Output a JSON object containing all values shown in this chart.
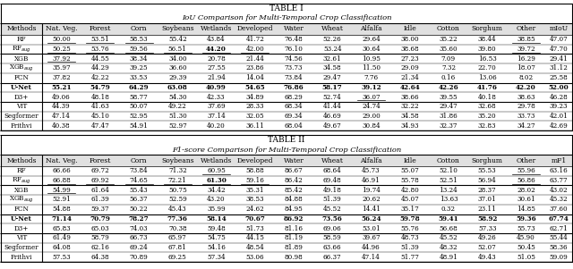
{
  "table1_title": "TABLE I",
  "table1_subtitle": "IoU Comparison for Multi-Temporal Crop Classification",
  "table2_title": "TABLE II",
  "table2_subtitle": "F1-score Comparison for Multi-Temporal Crop Classification",
  "columns": [
    "Methods",
    "Nat. Veg.",
    "Forest",
    "Corn",
    "Soybeans",
    "Wetlands",
    "Developed",
    "Water",
    "Wheat",
    "Alfalfa",
    "Idle",
    "Cotton",
    "Sorghum",
    "Other",
    "mIoU"
  ],
  "columns2": [
    "Methods",
    "Nat. Veg.",
    "Forest",
    "Corn",
    "Soybeans",
    "Wetlands",
    "Developed",
    "Water",
    "Wheat",
    "Alfalfa",
    "Idle",
    "Cotton",
    "Sorghum",
    "Other",
    "mF1"
  ],
  "table1_rows": [
    [
      "RF",
      "50.00",
      "53.51",
      "58.53",
      "55.42",
      "43.84",
      "41.72",
      "76.48",
      "52.26",
      "29.64",
      "38.00",
      "35.22",
      "38.44",
      "38.85",
      "47.07"
    ],
    [
      "RF_aug",
      "50.25",
      "53.76",
      "59.56",
      "56.51",
      "44.20",
      "42.00",
      "76.10",
      "53.24",
      "30.64",
      "38.68",
      "35.60",
      "39.80",
      "39.72",
      "47.70"
    ],
    [
      "XGB",
      "37.92",
      "44.55",
      "38.34",
      "34.00",
      "20.78",
      "21.44",
      "74.56",
      "32.61",
      "10.95",
      "27.23",
      "7.09",
      "16.53",
      "16.29",
      "29.41"
    ],
    [
      "XGB_aug",
      "35.97",
      "44.29",
      "39.25",
      "36.60",
      "27.55",
      "23.86",
      "73.73",
      "34.58",
      "11.50",
      "29.09",
      "7.32",
      "22.70",
      "18.07",
      "31.12"
    ],
    [
      "FCN",
      "37.82",
      "42.22",
      "33.53",
      "29.39",
      "21.94",
      "14.04",
      "73.84",
      "29.47",
      "7.76",
      "21.34",
      "0.16",
      "13.06",
      "8.02",
      "25.58"
    ],
    [
      "U-Net",
      "55.21",
      "54.79",
      "64.29",
      "63.08",
      "40.99",
      "54.65",
      "76.86",
      "58.17",
      "39.12",
      "42.64",
      "42.26",
      "41.76",
      "42.20",
      "52.00"
    ],
    [
      "D3+",
      "49.06",
      "48.18",
      "58.77",
      "54.30",
      "42.33",
      "34.89",
      "68.29",
      "52.74",
      "36.07",
      "38.66",
      "39.55",
      "40.18",
      "38.63",
      "46.28"
    ],
    [
      "ViT",
      "44.39",
      "41.63",
      "50.07",
      "49.22",
      "37.69",
      "28.33",
      "68.34",
      "41.44",
      "24.74",
      "32.22",
      "29.47",
      "32.68",
      "29.78",
      "39.23"
    ],
    [
      "Segformer",
      "47.14",
      "45.10",
      "52.95",
      "51.30",
      "37.14",
      "32.05",
      "69.34",
      "46.69",
      "29.00",
      "34.58",
      "31.86",
      "35.20",
      "33.73",
      "42.01"
    ],
    [
      "Prithvi",
      "40.38",
      "47.47",
      "54.91",
      "52.97",
      "40.20",
      "36.11",
      "68.04",
      "49.67",
      "30.84",
      "34.93",
      "32.37",
      "32.83",
      "34.27",
      "42.69"
    ]
  ],
  "table2_rows": [
    [
      "RF",
      "66.66",
      "69.72",
      "73.84",
      "71.32",
      "60.95",
      "58.88",
      "86.67",
      "68.64",
      "45.73",
      "55.07",
      "52.10",
      "55.53",
      "55.96",
      "63.16"
    ],
    [
      "RF_aug",
      "66.88",
      "69.92",
      "74.65",
      "72.21",
      "61.30",
      "59.16",
      "86.42",
      "69.48",
      "46.91",
      "55.78",
      "52.51",
      "56.94",
      "56.86",
      "63.77"
    ],
    [
      "XGB",
      "54.99",
      "61.64",
      "55.43",
      "50.75",
      "34.42",
      "35.31",
      "85.42",
      "49.18",
      "19.74",
      "42.80",
      "13.24",
      "28.37",
      "28.02",
      "43.02"
    ],
    [
      "XGB_aug",
      "52.91",
      "61.39",
      "56.37",
      "52.59",
      "43.20",
      "38.53",
      "84.88",
      "51.39",
      "20.62",
      "45.07",
      "13.63",
      "37.01",
      "30.61",
      "45.32"
    ],
    [
      "FCN",
      "54.88",
      "59.37",
      "50.22",
      "45.43",
      "35.99",
      "24.62",
      "84.95",
      "45.52",
      "14.41",
      "35.17",
      "0.32",
      "23.11",
      "14.85",
      "37.60"
    ],
    [
      "U-Net",
      "71.14",
      "70.79",
      "78.27",
      "77.36",
      "58.14",
      "70.67",
      "86.92",
      "73.56",
      "56.24",
      "59.78",
      "59.41",
      "58.92",
      "59.36",
      "67.74"
    ],
    [
      "D3+",
      "65.83",
      "65.03",
      "74.03",
      "70.38",
      "59.48",
      "51.73",
      "81.16",
      "69.06",
      "53.01",
      "55.76",
      "56.68",
      "57.33",
      "55.73",
      "62.71"
    ],
    [
      "ViT",
      "61.49",
      "58.79",
      "66.73",
      "65.97",
      "54.75",
      "44.15",
      "81.19",
      "58.59",
      "39.67",
      "48.73",
      "45.52",
      "49.26",
      "45.90",
      "55.44"
    ],
    [
      "Segformer",
      "64.08",
      "62.16",
      "69.24",
      "67.81",
      "54.16",
      "48.54",
      "81.89",
      "63.66",
      "44.96",
      "51.39",
      "48.32",
      "52.07",
      "50.45",
      "58.36"
    ],
    [
      "Prithvi",
      "57.53",
      "64.38",
      "70.89",
      "69.25",
      "57.34",
      "53.06",
      "80.98",
      "66.37",
      "47.14",
      "51.77",
      "48.91",
      "49.43",
      "51.05",
      "59.09"
    ]
  ],
  "t1_bold_row": 5,
  "t2_bold_row": 5,
  "t1_bold_also": [
    [
      1,
      5
    ]
  ],
  "t2_bold_also": [
    [
      1,
      5
    ]
  ],
  "t1_underline": [
    [
      0,
      [
        1,
        2,
        3,
        13
      ]
    ],
    [
      1,
      [
        1,
        2,
        3,
        4,
        5,
        6,
        13
      ]
    ],
    [
      2,
      [
        1
      ]
    ],
    [
      3,
      []
    ],
    [
      4,
      []
    ],
    [
      5,
      []
    ],
    [
      6,
      [
        9
      ]
    ],
    [
      7,
      []
    ],
    [
      8,
      []
    ],
    [
      9,
      []
    ]
  ],
  "t2_underline": [
    [
      0,
      [
        5,
        13
      ]
    ],
    [
      1,
      [
        1,
        2,
        3,
        4,
        5,
        6,
        13
      ]
    ],
    [
      2,
      [
        1
      ]
    ],
    [
      3,
      []
    ],
    [
      4,
      []
    ],
    [
      5,
      []
    ],
    [
      6,
      []
    ],
    [
      7,
      []
    ],
    [
      8,
      []
    ],
    [
      9,
      []
    ]
  ],
  "thick_sep_after": [
    1,
    4,
    6
  ],
  "bg_color": "#ffffff"
}
